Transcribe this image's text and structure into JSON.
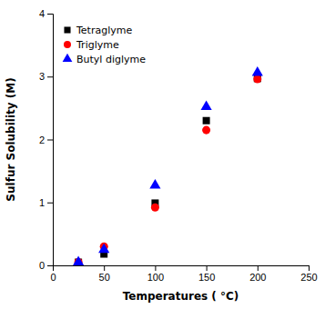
{
  "chart_data": {
    "type": "scatter",
    "xlabel": "Temperatures ( °C)",
    "ylabel": "Sulfur Solubility (M)",
    "xlim": [
      0,
      250
    ],
    "ylim": [
      0,
      4
    ],
    "xticks": [
      0,
      50,
      100,
      150,
      200,
      250
    ],
    "yticks": [
      0,
      1,
      2,
      3,
      4
    ],
    "legend": "upper left",
    "series": [
      {
        "name": "Tetraglyme",
        "color": "#000000",
        "marker": "square",
        "x": [
          25,
          50,
          100,
          150,
          200
        ],
        "values": [
          0.05,
          0.18,
          0.99,
          2.3,
          2.97
        ]
      },
      {
        "name": "Triglyme",
        "color": "#ff0000",
        "marker": "circle",
        "x": [
          25,
          50,
          100,
          150,
          200
        ],
        "values": [
          0.05,
          0.3,
          0.92,
          2.15,
          2.96
        ]
      },
      {
        "name": "Butyl diglyme",
        "color": "#0000ff",
        "marker": "triangle",
        "x": [
          25,
          50,
          100,
          150,
          200
        ],
        "values": [
          0.05,
          0.25,
          1.27,
          2.52,
          3.06
        ]
      }
    ]
  }
}
